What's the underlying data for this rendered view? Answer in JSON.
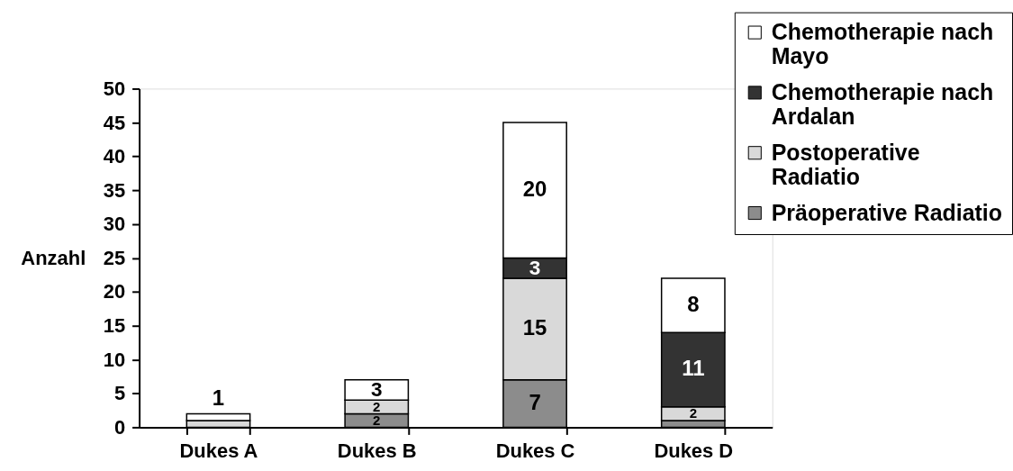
{
  "chart_data": {
    "type": "bar",
    "stacked": true,
    "ylabel": "Anzahl",
    "categories": [
      "Dukes A",
      "Dukes B",
      "Dukes C",
      "Dukes D"
    ],
    "series": [
      {
        "name": "Präoperative Radiatio",
        "color": "#8c8c8c",
        "values": [
          0,
          2,
          7,
          1
        ],
        "value_labels": [
          null,
          "2",
          "7",
          null
        ]
      },
      {
        "name": "Postoperative Radiatio",
        "color": "#d9d9d9",
        "values": [
          1,
          2,
          15,
          2
        ],
        "value_labels": [
          null,
          "2",
          "15",
          "2"
        ]
      },
      {
        "name": "Chemotherapie nach Ardalan",
        "color": "#333333",
        "values": [
          0,
          0,
          3,
          11
        ],
        "value_labels": [
          null,
          null,
          "3",
          "11"
        ]
      },
      {
        "name": "Chemotherapie nach Mayo",
        "color": "#ffffff",
        "values": [
          1,
          3,
          20,
          8
        ],
        "value_labels": [
          "1",
          "3",
          "20",
          "8"
        ]
      }
    ],
    "ylim": [
      0,
      50
    ],
    "yticks": [
      0,
      5,
      10,
      15,
      20,
      25,
      30,
      35,
      40,
      45,
      50
    ],
    "legend": "top right",
    "grid": false
  }
}
